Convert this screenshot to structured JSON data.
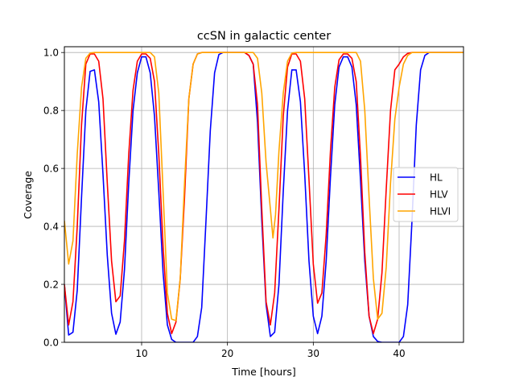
{
  "chart_data": {
    "type": "line",
    "title": "ccSN in galactic center",
    "xlabel": "Time [hours]",
    "ylabel": "Coverage",
    "xlim": [
      1,
      47.5
    ],
    "ylim": [
      0,
      1.02
    ],
    "xticks": [
      10,
      20,
      30,
      40
    ],
    "yticks": [
      0.0,
      0.2,
      0.4,
      0.6,
      0.8,
      1.0
    ],
    "xtick_labels": [
      "10",
      "20",
      "30",
      "40"
    ],
    "ytick_labels": [
      "0.0",
      "0.2",
      "0.4",
      "0.6",
      "0.8",
      "1.0"
    ],
    "grid": true,
    "legend_position": "center-right",
    "series": [
      {
        "name": "HL",
        "color": "#0000ff",
        "points": [
          [
            1.0,
            0.2
          ],
          [
            1.5,
            0.025
          ],
          [
            2.0,
            0.035
          ],
          [
            2.5,
            0.18
          ],
          [
            3.0,
            0.5
          ],
          [
            3.5,
            0.8
          ],
          [
            4.0,
            0.935
          ],
          [
            4.5,
            0.94
          ],
          [
            5.0,
            0.83
          ],
          [
            5.5,
            0.58
          ],
          [
            6.0,
            0.3
          ],
          [
            6.5,
            0.1
          ],
          [
            7.0,
            0.028
          ],
          [
            7.5,
            0.07
          ],
          [
            8.0,
            0.25
          ],
          [
            8.5,
            0.55
          ],
          [
            9.0,
            0.8
          ],
          [
            9.5,
            0.93
          ],
          [
            10.0,
            0.985
          ],
          [
            10.5,
            0.985
          ],
          [
            11.0,
            0.93
          ],
          [
            11.5,
            0.78
          ],
          [
            12.0,
            0.52
          ],
          [
            12.5,
            0.24
          ],
          [
            13.0,
            0.06
          ],
          [
            13.5,
            0.01
          ],
          [
            14.0,
            0.0
          ],
          [
            15.0,
            0.0
          ],
          [
            16.0,
            0.0
          ],
          [
            16.5,
            0.02
          ],
          [
            17.0,
            0.12
          ],
          [
            17.5,
            0.42
          ],
          [
            18.0,
            0.73
          ],
          [
            18.5,
            0.93
          ],
          [
            19.0,
            0.993
          ],
          [
            19.5,
            1.0
          ],
          [
            20.0,
            1.0
          ],
          [
            21.0,
            1.0
          ],
          [
            22.0,
            1.0
          ],
          [
            22.5,
            0.99
          ],
          [
            23.0,
            0.96
          ],
          [
            23.5,
            0.76
          ],
          [
            24.0,
            0.42
          ],
          [
            24.5,
            0.13
          ],
          [
            25.0,
            0.02
          ],
          [
            25.5,
            0.035
          ],
          [
            26.0,
            0.2
          ],
          [
            26.5,
            0.52
          ],
          [
            27.0,
            0.8
          ],
          [
            27.5,
            0.94
          ],
          [
            28.0,
            0.94
          ],
          [
            28.5,
            0.83
          ],
          [
            29.0,
            0.58
          ],
          [
            29.5,
            0.28
          ],
          [
            30.0,
            0.09
          ],
          [
            30.5,
            0.03
          ],
          [
            31.0,
            0.09
          ],
          [
            31.5,
            0.28
          ],
          [
            32.0,
            0.57
          ],
          [
            32.5,
            0.82
          ],
          [
            33.0,
            0.95
          ],
          [
            33.5,
            0.985
          ],
          [
            34.0,
            0.985
          ],
          [
            34.5,
            0.95
          ],
          [
            35.0,
            0.82
          ],
          [
            35.5,
            0.56
          ],
          [
            36.0,
            0.28
          ],
          [
            36.5,
            0.09
          ],
          [
            37.0,
            0.02
          ],
          [
            37.5,
            0.003
          ],
          [
            38.0,
            0.0
          ],
          [
            39.0,
            0.0
          ],
          [
            40.0,
            0.0
          ],
          [
            40.5,
            0.02
          ],
          [
            41.0,
            0.13
          ],
          [
            41.5,
            0.42
          ],
          [
            42.0,
            0.75
          ],
          [
            42.5,
            0.94
          ],
          [
            43.0,
            0.99
          ],
          [
            43.5,
            1.0
          ],
          [
            45.0,
            1.0
          ],
          [
            47.5,
            1.0
          ]
        ]
      },
      {
        "name": "HLV",
        "color": "#ff0000",
        "points": [
          [
            1.0,
            0.2
          ],
          [
            1.5,
            0.06
          ],
          [
            2.0,
            0.14
          ],
          [
            2.5,
            0.4
          ],
          [
            3.0,
            0.75
          ],
          [
            3.5,
            0.96
          ],
          [
            4.0,
            0.995
          ],
          [
            4.5,
            0.995
          ],
          [
            5.0,
            0.97
          ],
          [
            5.5,
            0.84
          ],
          [
            6.0,
            0.55
          ],
          [
            6.5,
            0.28
          ],
          [
            7.0,
            0.14
          ],
          [
            7.5,
            0.16
          ],
          [
            8.0,
            0.35
          ],
          [
            8.5,
            0.65
          ],
          [
            9.0,
            0.87
          ],
          [
            9.5,
            0.97
          ],
          [
            10.0,
            0.995
          ],
          [
            10.5,
            0.995
          ],
          [
            11.0,
            0.98
          ],
          [
            11.5,
            0.9
          ],
          [
            12.0,
            0.65
          ],
          [
            12.5,
            0.33
          ],
          [
            13.0,
            0.1
          ],
          [
            13.5,
            0.03
          ],
          [
            14.0,
            0.07
          ],
          [
            14.5,
            0.22
          ],
          [
            15.0,
            0.5
          ],
          [
            15.5,
            0.84
          ],
          [
            16.0,
            0.96
          ],
          [
            16.5,
            0.995
          ],
          [
            17.0,
            1.0
          ],
          [
            18.0,
            1.0
          ],
          [
            20.0,
            1.0
          ],
          [
            22.0,
            1.0
          ],
          [
            22.5,
            0.99
          ],
          [
            23.0,
            0.96
          ],
          [
            23.5,
            0.82
          ],
          [
            24.0,
            0.46
          ],
          [
            24.5,
            0.14
          ],
          [
            25.0,
            0.06
          ],
          [
            25.5,
            0.17
          ],
          [
            26.0,
            0.46
          ],
          [
            26.5,
            0.78
          ],
          [
            27.0,
            0.95
          ],
          [
            27.5,
            0.995
          ],
          [
            28.0,
            0.995
          ],
          [
            28.5,
            0.97
          ],
          [
            29.0,
            0.84
          ],
          [
            29.5,
            0.56
          ],
          [
            30.0,
            0.27
          ],
          [
            30.5,
            0.135
          ],
          [
            31.0,
            0.17
          ],
          [
            31.5,
            0.37
          ],
          [
            32.0,
            0.66
          ],
          [
            32.5,
            0.88
          ],
          [
            33.0,
            0.975
          ],
          [
            33.5,
            0.995
          ],
          [
            34.0,
            0.995
          ],
          [
            34.5,
            0.98
          ],
          [
            35.0,
            0.9
          ],
          [
            35.5,
            0.64
          ],
          [
            36.0,
            0.31
          ],
          [
            36.5,
            0.09
          ],
          [
            37.0,
            0.03
          ],
          [
            37.5,
            0.08
          ],
          [
            38.0,
            0.24
          ],
          [
            38.5,
            0.53
          ],
          [
            39.0,
            0.8
          ],
          [
            39.5,
            0.94
          ],
          [
            40.0,
            0.96
          ],
          [
            40.5,
            0.985
          ],
          [
            41.0,
            0.997
          ],
          [
            41.5,
            1.0
          ],
          [
            42.0,
            1.0
          ],
          [
            45.0,
            1.0
          ],
          [
            47.5,
            1.0
          ]
        ]
      },
      {
        "name": "HLVI",
        "color": "#ffa500",
        "points": [
          [
            1.0,
            0.42
          ],
          [
            1.5,
            0.27
          ],
          [
            2.0,
            0.35
          ],
          [
            2.5,
            0.65
          ],
          [
            3.0,
            0.88
          ],
          [
            3.5,
            0.98
          ],
          [
            4.0,
            0.998
          ],
          [
            4.5,
            1.0
          ],
          [
            5.0,
            1.0
          ],
          [
            6.0,
            1.0
          ],
          [
            7.0,
            1.0
          ],
          [
            8.0,
            1.0
          ],
          [
            9.0,
            1.0
          ],
          [
            10.0,
            1.0
          ],
          [
            11.0,
            1.0
          ],
          [
            11.5,
            0.985
          ],
          [
            12.0,
            0.86
          ],
          [
            12.5,
            0.52
          ],
          [
            13.0,
            0.17
          ],
          [
            13.5,
            0.08
          ],
          [
            14.0,
            0.075
          ],
          [
            14.5,
            0.22
          ],
          [
            15.0,
            0.55
          ],
          [
            15.5,
            0.84
          ],
          [
            16.0,
            0.96
          ],
          [
            16.5,
            0.995
          ],
          [
            17.0,
            1.0
          ],
          [
            20.0,
            1.0
          ],
          [
            22.0,
            1.0
          ],
          [
            23.0,
            1.0
          ],
          [
            23.5,
            0.98
          ],
          [
            24.0,
            0.86
          ],
          [
            24.5,
            0.62
          ],
          [
            25.0,
            0.46
          ],
          [
            25.3,
            0.36
          ],
          [
            25.6,
            0.44
          ],
          [
            26.0,
            0.66
          ],
          [
            26.5,
            0.86
          ],
          [
            27.0,
            0.97
          ],
          [
            27.5,
            0.998
          ],
          [
            28.0,
            1.0
          ],
          [
            30.0,
            1.0
          ],
          [
            32.0,
            1.0
          ],
          [
            34.0,
            1.0
          ],
          [
            35.0,
            1.0
          ],
          [
            35.5,
            0.97
          ],
          [
            36.0,
            0.8
          ],
          [
            36.5,
            0.5
          ],
          [
            37.0,
            0.22
          ],
          [
            37.5,
            0.08
          ],
          [
            38.0,
            0.1
          ],
          [
            38.5,
            0.26
          ],
          [
            39.0,
            0.55
          ],
          [
            39.5,
            0.77
          ],
          [
            40.0,
            0.88
          ],
          [
            40.5,
            0.96
          ],
          [
            41.0,
            0.99
          ],
          [
            41.5,
            1.0
          ],
          [
            45.0,
            1.0
          ],
          [
            47.5,
            1.0
          ]
        ]
      }
    ]
  }
}
